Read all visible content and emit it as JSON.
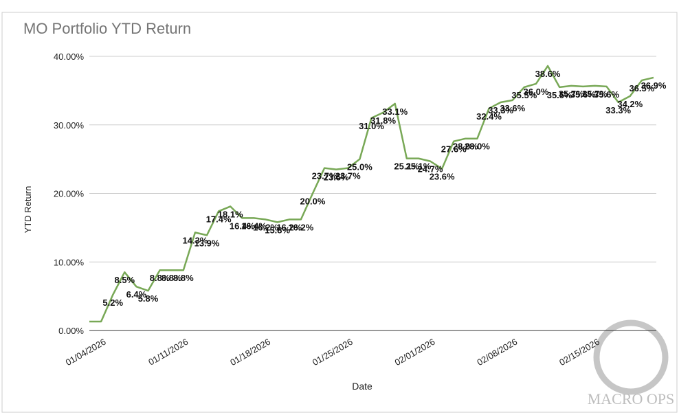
{
  "chart_data": {
    "type": "line",
    "title": "MO Portfolio YTD Return",
    "x_label": "Date",
    "y_label": "YTD Return",
    "watermark": "MACRO OPS",
    "categories": [
      null,
      "01/04/2026",
      null,
      null,
      null,
      null,
      null,
      null,
      "01/11/2026",
      null,
      null,
      null,
      null,
      null,
      null,
      "01/18/2026",
      null,
      null,
      null,
      null,
      null,
      null,
      "01/25/2026",
      null,
      null,
      null,
      null,
      null,
      null,
      "02/01/2026",
      null,
      null,
      null,
      null,
      null,
      null,
      "02/08/2026",
      null,
      null,
      null,
      null,
      null,
      null,
      "02/15/2026",
      null,
      null,
      null,
      null,
      null
    ],
    "series": [
      {
        "name": "YTD Return",
        "color": "#78a856",
        "values": [
          1.3,
          1.3,
          5.2,
          8.5,
          6.4,
          5.8,
          8.8,
          8.8,
          8.8,
          14.3,
          13.9,
          17.4,
          18.1,
          16.4,
          16.4,
          16.2,
          15.8,
          16.2,
          16.2,
          20.0,
          23.7,
          23.5,
          23.7,
          25.0,
          31.0,
          31.8,
          33.1,
          25.1,
          25.1,
          24.7,
          23.6,
          27.6,
          28.0,
          28.0,
          32.4,
          33.3,
          33.6,
          35.5,
          36.0,
          38.6,
          35.5,
          35.7,
          35.6,
          35.7,
          35.6,
          33.3,
          34.2,
          36.5,
          36.9
        ],
        "value_labels": [
          null,
          null,
          "5.2%",
          "8.5%",
          "6.4%",
          "5.8%",
          "8.8%",
          "8.8%",
          "8.8%",
          "14.3%",
          "13.9%",
          "17.4%",
          "18.1%",
          "16.4%",
          "16.4%",
          "16.2%",
          "15.8%",
          "16.2%",
          "16.2%",
          "20.0%",
          "23.7%",
          "23.5%",
          "23.7%",
          "25.0%",
          "31.0%",
          "31.8%",
          "33.1%",
          "25.1%",
          "25.1%",
          "24.7%",
          "23.6%",
          "27.6%",
          "28.0%",
          "28.0%",
          "32.4%",
          "33.3%",
          "33.6%",
          "35.5%",
          "36.0%",
          "38.6%",
          "35.5%",
          "35.7%",
          "35.6%",
          "35.7%",
          "35.6%",
          "33.3%",
          "34.2%",
          "36.5%",
          "36.9%"
        ]
      }
    ],
    "ylim": [
      0,
      40
    ],
    "yticks": [
      {
        "value": 0,
        "label": "0.00%"
      },
      {
        "value": 10,
        "label": "10.00%"
      },
      {
        "value": 20,
        "label": "20.00%"
      },
      {
        "value": 30,
        "label": "30.00%"
      },
      {
        "value": 40,
        "label": "40.00%"
      }
    ],
    "grid": true
  }
}
